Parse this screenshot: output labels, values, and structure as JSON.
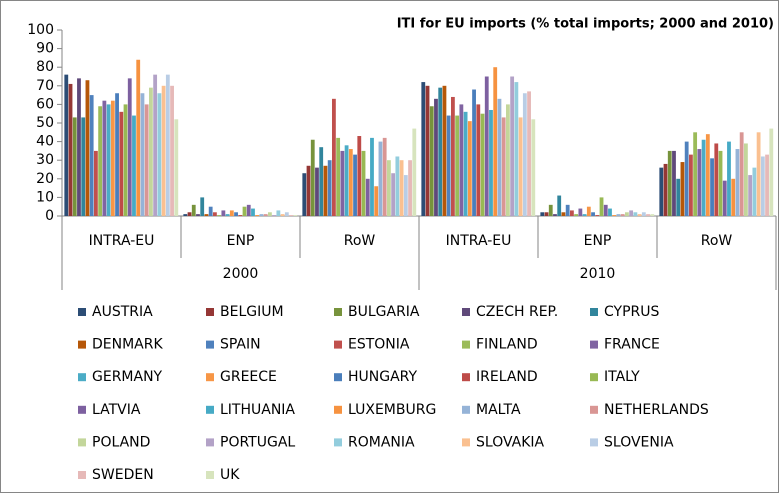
{
  "chart_data": {
    "type": "bar",
    "title": "ITI for EU imports (% total imports; 2000 and 2010)",
    "categories": [
      "INTRA-EU",
      "ENP",
      "RoW",
      "INTRA-EU",
      "ENP",
      "RoW"
    ],
    "category_groups": [
      "2000",
      "2010"
    ],
    "ylim": [
      0,
      100
    ],
    "yticks": [
      0,
      10,
      20,
      30,
      40,
      50,
      60,
      70,
      80,
      90,
      100
    ],
    "grid": false,
    "legend": "bottom",
    "series": [
      {
        "name": "AUSTRIA",
        "color": "#2C4D75",
        "values": [
          76,
          1,
          23,
          72,
          2,
          26
        ]
      },
      {
        "name": "BELGIUM",
        "color": "#953735",
        "values": [
          71,
          2,
          27,
          70,
          2,
          28
        ]
      },
      {
        "name": "BULGARIA",
        "color": "#77933C",
        "values": [
          53,
          6,
          41,
          59,
          6,
          35
        ]
      },
      {
        "name": "CZECH REP.",
        "color": "#5F497A",
        "values": [
          74,
          1,
          26,
          63,
          1,
          35
        ]
      },
      {
        "name": "CYPRUS",
        "color": "#31859C",
        "values": [
          53,
          10,
          37,
          69,
          11,
          20
        ]
      },
      {
        "name": "DENMARK",
        "color": "#B65708",
        "values": [
          73,
          1,
          27,
          70,
          2,
          29
        ]
      },
      {
        "name": "SPAIN",
        "color": "#4F81BD",
        "values": [
          65,
          5,
          30,
          54,
          6,
          40
        ]
      },
      {
        "name": "ESTONIA",
        "color": "#C0504D",
        "values": [
          35,
          2,
          63,
          64,
          3,
          33
        ]
      },
      {
        "name": "FINLAND",
        "color": "#9BBB59",
        "values": [
          59,
          0.5,
          42,
          54,
          1,
          45
        ]
      },
      {
        "name": "FRANCE",
        "color": "#8064A2",
        "values": [
          62,
          3,
          35,
          60,
          4,
          36
        ]
      },
      {
        "name": "GERMANY",
        "color": "#4BACC6",
        "values": [
          60,
          1,
          38,
          56,
          1,
          41
        ]
      },
      {
        "name": "GREECE",
        "color": "#F79646",
        "values": [
          62,
          3,
          36,
          51,
          5,
          44
        ]
      },
      {
        "name": "HUNGARY",
        "color": "#4A7EBB",
        "values": [
          66,
          2,
          33,
          68,
          2,
          31
        ]
      },
      {
        "name": "IRELAND",
        "color": "#BE4B48",
        "values": [
          56,
          0.5,
          43,
          60,
          0.5,
          39
        ]
      },
      {
        "name": "ITALY",
        "color": "#98B954",
        "values": [
          60,
          5,
          35,
          55,
          10,
          35
        ]
      },
      {
        "name": "LATVIA",
        "color": "#7D60A0",
        "values": [
          74,
          6,
          20,
          75,
          6,
          19
        ]
      },
      {
        "name": "LITHUANIA",
        "color": "#46AAC5",
        "values": [
          54,
          4,
          42,
          57,
          4,
          40
        ]
      },
      {
        "name": "LUXEMBURG",
        "color": "#F69240",
        "values": [
          84,
          0.5,
          16,
          80,
          0.5,
          20
        ]
      },
      {
        "name": "MALTA",
        "color": "#95B3D7",
        "values": [
          66,
          1,
          40,
          63,
          1,
          36
        ]
      },
      {
        "name": "NETHERLANDS",
        "color": "#D99694",
        "values": [
          60,
          1,
          42,
          53,
          1,
          45
        ]
      },
      {
        "name": "POLAND",
        "color": "#C3D69B",
        "values": [
          69,
          2,
          30,
          60,
          2,
          39
        ]
      },
      {
        "name": "PORTUGAL",
        "color": "#B3A2C7",
        "values": [
          76,
          0.5,
          23,
          75,
          3,
          22
        ]
      },
      {
        "name": "ROMANIA",
        "color": "#93CDDD",
        "values": [
          66,
          3,
          32,
          72,
          2,
          26
        ]
      },
      {
        "name": "SLOVAKIA",
        "color": "#FAC090",
        "values": [
          70,
          1,
          30,
          53,
          1,
          45
        ]
      },
      {
        "name": "SLOVENIA",
        "color": "#B9CDE5",
        "values": [
          76,
          2,
          22,
          66,
          2,
          32
        ]
      },
      {
        "name": "SWEDEN",
        "color": "#E6B9B8",
        "values": [
          70,
          0.5,
          30,
          67,
          1,
          33
        ]
      },
      {
        "name": "UK",
        "color": "#D7E4BD",
        "values": [
          52,
          0.5,
          47,
          52,
          1,
          47
        ]
      }
    ]
  }
}
